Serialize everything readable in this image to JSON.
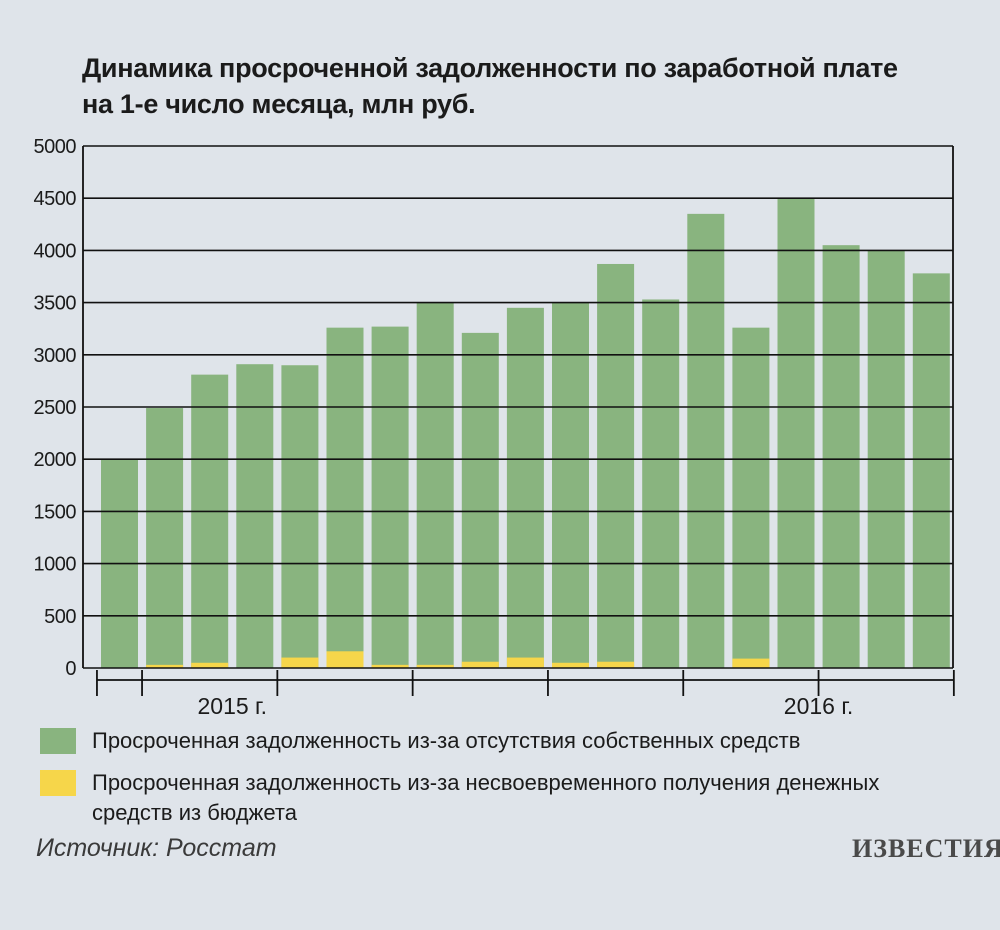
{
  "title_lines": [
    "Динамика просроченной задолженности по заработной плате",
    "на 1-е число месяца, млн руб."
  ],
  "colors": {
    "own_funds": "#89b47f",
    "budget": "#f6d64a",
    "grid": "#111111",
    "background": "#dfe4ea"
  },
  "legend": [
    {
      "label": "Просроченная задолженность из-за отсутствия собственных средств",
      "color": "#89b47f"
    },
    {
      "label": "Просроченная задолженность из-за несвоевременного получения денежных средств из бюджета",
      "color": "#f6d64a"
    }
  ],
  "source": "Источник: Росстат",
  "logo": "ИЗВЕСТИЯ",
  "chart_data": {
    "type": "bar",
    "stacked": true,
    "title": "Динамика просроченной задолженности по заработной плате на 1-е число месяца, млн руб.",
    "ylim": [
      0,
      5000
    ],
    "yticks": [
      "0",
      "500",
      "1000",
      "1500",
      "2000",
      "2500",
      "3000",
      "3500",
      "4000",
      "4500",
      "5000"
    ],
    "grid": true,
    "legend_position": "bottom",
    "year_labels": [
      {
        "label": "2015 г.",
        "category_index": 2.5
      },
      {
        "label": "2016 г.",
        "category_index": 15.5
      }
    ],
    "series": [
      {
        "name": "Просроченная задолженность из-за отсутствия собственных средств",
        "values": [
          2000,
          2460,
          2760,
          2910,
          2800,
          3100,
          3240,
          3470,
          3150,
          3350,
          3450,
          3810,
          3530,
          4350,
          3170,
          4500,
          4050,
          4000,
          3780
        ]
      },
      {
        "name": "Просроченная задолженность из-за несвоевременного получения денежных средств из бюджета",
        "values": [
          0,
          30,
          50,
          0,
          100,
          160,
          30,
          30,
          60,
          100,
          50,
          60,
          0,
          0,
          90,
          0,
          0,
          0,
          0
        ]
      }
    ]
  }
}
